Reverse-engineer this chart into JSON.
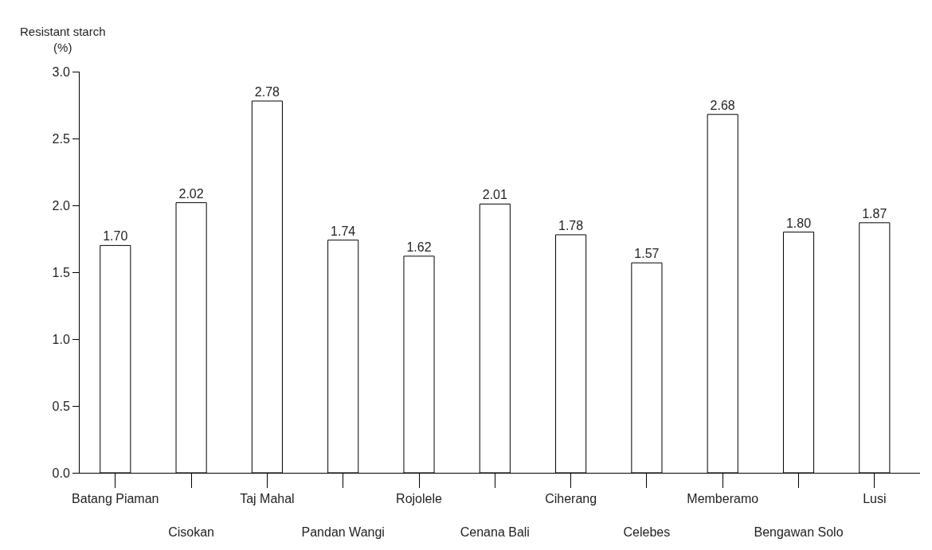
{
  "chart_data": {
    "type": "bar",
    "ylabel": "Resistant starch\n(%)",
    "categories": [
      "Batang Piaman",
      "Cisokan",
      "Taj Mahal",
      "Pandan Wangi",
      "Rojolele",
      "Cenana Bali",
      "Ciherang",
      "Celebes",
      "Memberamo",
      "Bengawan Solo",
      "Lusi"
    ],
    "values": [
      1.7,
      2.02,
      2.78,
      1.74,
      1.62,
      2.01,
      1.78,
      1.57,
      2.68,
      1.8,
      1.87
    ],
    "value_labels": [
      "1.70",
      "2.02",
      "2.78",
      "1.74",
      "1.62",
      "2.01",
      "1.78",
      "1.57",
      "2.68",
      "1.80",
      "1.87"
    ],
    "color": "#ffffff",
    "ylim": [
      0,
      3
    ],
    "yticks": [
      {
        "value": 0,
        "label": "0.0"
      },
      {
        "value": 0.5,
        "label": "0.5"
      },
      {
        "value": 1,
        "label": "1.0"
      },
      {
        "value": 1.5,
        "label": "1.5"
      },
      {
        "value": 2,
        "label": "2.0"
      },
      {
        "value": 2.5,
        "label": "2.5"
      },
      {
        "value": 3,
        "label": "3.0"
      }
    ],
    "legend": false
  }
}
